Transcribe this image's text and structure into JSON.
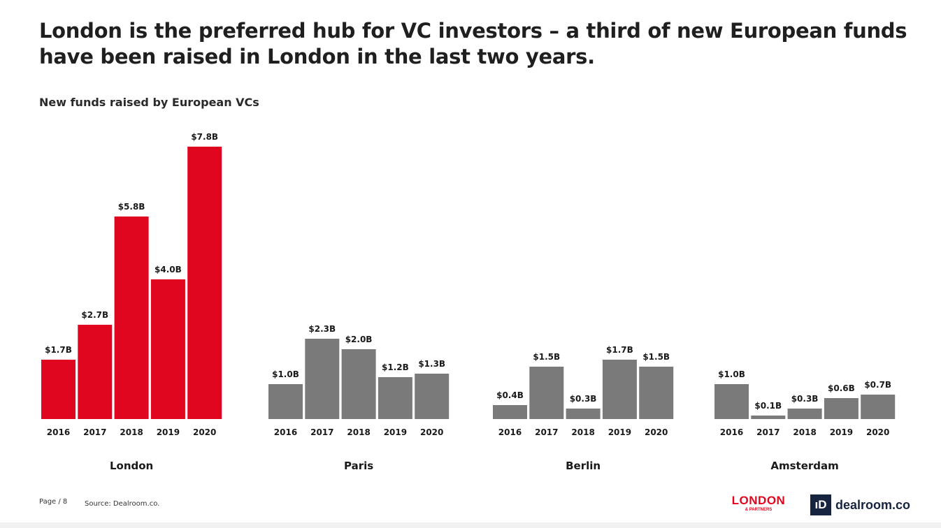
{
  "headline": "London is the preferred hub for VC investors – a third of new European funds have been raised in London in the last two years.",
  "colors": {
    "london": "#e0061f",
    "other": "#7a7a7a",
    "brand_dealroom": "#16243f"
  },
  "chart_data": {
    "type": "bar",
    "title": "New funds raised by European VCs",
    "unit": "$B",
    "groups": [
      {
        "city": "London",
        "categories": [
          "2016",
          "2017",
          "2018",
          "2019",
          "2020"
        ],
        "values": [
          1.7,
          2.7,
          5.8,
          4.0,
          7.8
        ],
        "labels": [
          "$1.7B",
          "$2.7B",
          "$5.8B",
          "$4.0B",
          "$7.8B"
        ],
        "highlight": true
      },
      {
        "city": "Paris",
        "categories": [
          "2016",
          "2017",
          "2018",
          "2019",
          "2020"
        ],
        "values": [
          1.0,
          2.3,
          2.0,
          1.2,
          1.3
        ],
        "labels": [
          "$1.0B",
          "$2.3B",
          "$2.0B",
          "$1.2B",
          "$1.3B"
        ],
        "highlight": false
      },
      {
        "city": "Berlin",
        "categories": [
          "2016",
          "2017",
          "2018",
          "2019",
          "2020"
        ],
        "values": [
          0.4,
          1.5,
          0.3,
          1.7,
          1.5
        ],
        "labels": [
          "$0.4B",
          "$1.5B",
          "$0.3B",
          "$1.7B",
          "$1.5B"
        ],
        "highlight": false
      },
      {
        "city": "Amsterdam",
        "categories": [
          "2016",
          "2017",
          "2018",
          "2019",
          "2020"
        ],
        "values": [
          1.0,
          0.1,
          0.3,
          0.6,
          0.7
        ],
        "labels": [
          "$1.0B",
          "$0.1B",
          "$0.3B",
          "$0.6B",
          "$0.7B"
        ],
        "highlight": false
      }
    ]
  },
  "footer": {
    "page": "Page / 8",
    "source": "Source: Dealroom.co."
  },
  "logos": {
    "london_partners_main": "LONDON",
    "london_partners_sub": "& PARTNERS",
    "dealroom_mark": "ıD",
    "dealroom_text": "dealroom.co"
  }
}
